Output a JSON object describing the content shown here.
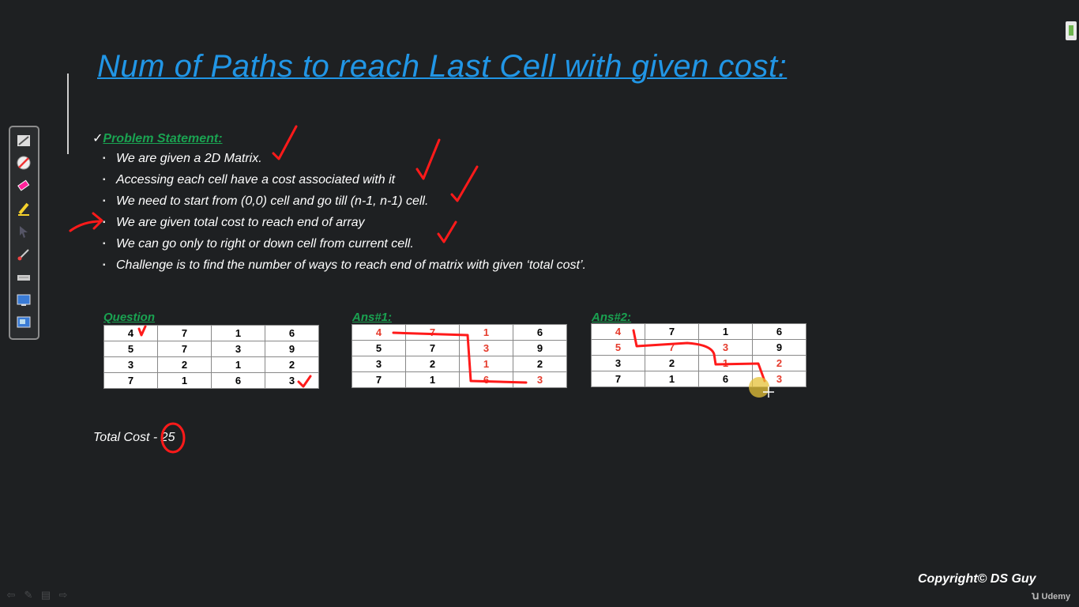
{
  "title": "Num of Paths to reach Last Cell with given cost:",
  "problem": {
    "check": "✓",
    "heading": "Problem Statement:",
    "bullet_glyph": "▪",
    "bullets": [
      "We are given a 2D Matrix.",
      "Accessing each cell have a cost associated with it",
      "We need to start from (0,0) cell and go till (n-1, n-1) cell.",
      "We are given total cost to reach end of array",
      "We can go only to right or down cell from current cell.",
      "Challenge is to find the number of ways to reach end of matrix with given ‘total cost’."
    ]
  },
  "matrices": [
    {
      "label": "Question",
      "rows": [
        [
          "4",
          "7",
          "1",
          "6"
        ],
        [
          "5",
          "7",
          "3",
          "9"
        ],
        [
          "3",
          "2",
          "1",
          "2"
        ],
        [
          "7",
          "1",
          "6",
          "3"
        ]
      ],
      "highlight": []
    },
    {
      "label": "Ans#1:",
      "rows": [
        [
          "4",
          "7",
          "1",
          "6"
        ],
        [
          "5",
          "7",
          "3",
          "9"
        ],
        [
          "3",
          "2",
          "1",
          "2"
        ],
        [
          "7",
          "1",
          "6",
          "3"
        ]
      ],
      "highlight": [
        [
          0,
          0
        ],
        [
          0,
          1
        ],
        [
          0,
          2
        ],
        [
          1,
          2
        ],
        [
          2,
          2
        ],
        [
          3,
          2
        ],
        [
          3,
          3
        ]
      ]
    },
    {
      "label": "Ans#2:",
      "rows": [
        [
          "4",
          "7",
          "1",
          "6"
        ],
        [
          "5",
          "7",
          "3",
          "9"
        ],
        [
          "3",
          "2",
          "1",
          "2"
        ],
        [
          "7",
          "1",
          "6",
          "3"
        ]
      ],
      "highlight": [
        [
          0,
          0
        ],
        [
          1,
          0
        ],
        [
          1,
          1
        ],
        [
          1,
          2
        ],
        [
          2,
          2
        ],
        [
          2,
          3
        ],
        [
          3,
          3
        ]
      ]
    }
  ],
  "total_cost": {
    "label": "Total Cost - ",
    "value": "25"
  },
  "copyright": "Copyright© DS Guy",
  "brand": {
    "glyph": "ꭒ",
    "name": "Udemy"
  },
  "toolbar": {
    "tools": [
      "pen-icon",
      "no-ink-icon",
      "eraser-icon",
      "highlighter-icon",
      "pointer-icon",
      "brush-icon",
      "keyboard-icon",
      "screen-icon",
      "capture-icon"
    ]
  },
  "bottom_nav": [
    "back-arrow-icon",
    "pen-icon",
    "menu-icon",
    "forward-arrow-icon"
  ],
  "colors": {
    "title": "#2196e6",
    "heading": "#1aa251",
    "highlight": "#e53b2c",
    "ink": "#ff1a1a",
    "background": "#1e2022"
  }
}
